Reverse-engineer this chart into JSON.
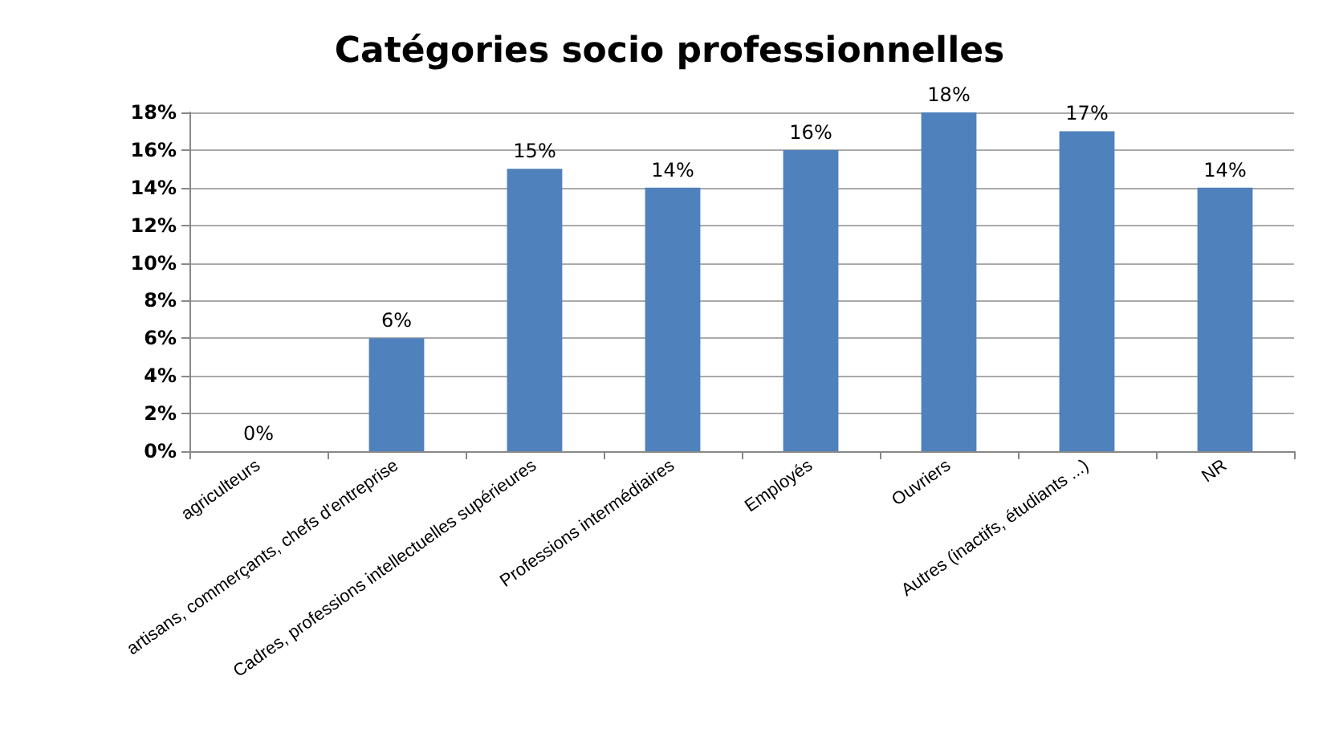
{
  "chart_data": {
    "type": "bar",
    "title": "Catégories socio professionnelles",
    "categories": [
      "agriculteurs",
      "artisans, commerçants, chefs d'entreprise",
      "Cadres, professions intellectuelles supérieures",
      "Professions intermédiaires",
      "Employés",
      "Ouvriers",
      "Autres (inactifs, étudiants ...)",
      "NR"
    ],
    "values": [
      0,
      6,
      15,
      14,
      16,
      18,
      17,
      14
    ],
    "value_labels": [
      "0%",
      "6%",
      "15%",
      "14%",
      "16%",
      "18%",
      "17%",
      "14%"
    ],
    "color": "#4f81bd",
    "ylim": [
      0,
      18
    ],
    "yticks": [
      {
        "value": 0,
        "label": "0%"
      },
      {
        "value": 2,
        "label": "2%"
      },
      {
        "value": 4,
        "label": "4%"
      },
      {
        "value": 6,
        "label": "6%"
      },
      {
        "value": 8,
        "label": "8%"
      },
      {
        "value": 10,
        "label": "10%"
      },
      {
        "value": 12,
        "label": "12%"
      },
      {
        "value": 14,
        "label": "14%"
      },
      {
        "value": 16,
        "label": "16%"
      },
      {
        "value": 18,
        "label": "18%"
      }
    ],
    "grid": "y"
  }
}
